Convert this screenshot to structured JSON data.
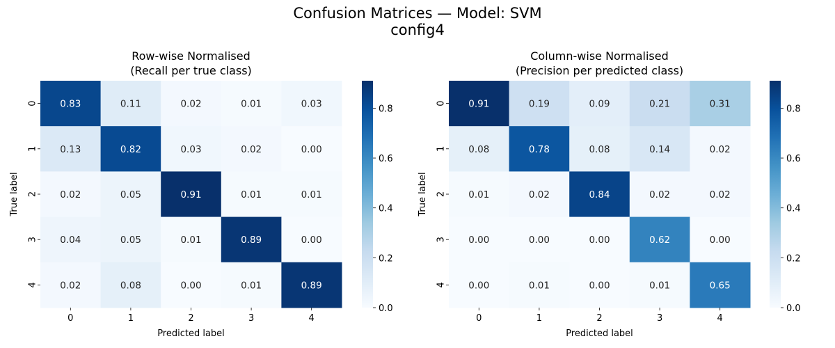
{
  "suptitle_line1": "Confusion Matrices — Model: SVM",
  "suptitle_line2": "config4",
  "chart_data": [
    {
      "type": "heatmap",
      "title_line1": "Row-wise Normalised",
      "title_line2": "(Recall per true class)",
      "xlabel": "Predicted label",
      "ylabel": "True label",
      "x_categories": [
        "0",
        "1",
        "2",
        "3",
        "4"
      ],
      "y_categories": [
        "0",
        "1",
        "2",
        "3",
        "4"
      ],
      "values": [
        [
          0.83,
          0.11,
          0.02,
          0.01,
          0.03
        ],
        [
          0.13,
          0.82,
          0.03,
          0.02,
          0.0
        ],
        [
          0.02,
          0.05,
          0.91,
          0.01,
          0.01
        ],
        [
          0.04,
          0.05,
          0.01,
          0.89,
          0.0
        ],
        [
          0.02,
          0.08,
          0.0,
          0.01,
          0.89
        ]
      ],
      "colormap": "Blues",
      "colorbar": {
        "min": 0.0,
        "max": 0.91,
        "ticks": [
          0.0,
          0.2,
          0.4,
          0.6,
          0.8
        ],
        "tick_labels": [
          "0.0",
          "0.2",
          "0.4",
          "0.6",
          "0.8"
        ]
      }
    },
    {
      "type": "heatmap",
      "title_line1": "Column-wise Normalised",
      "title_line2": "(Precision per predicted class)",
      "xlabel": "Predicted label",
      "ylabel": "True label",
      "x_categories": [
        "0",
        "1",
        "2",
        "3",
        "4"
      ],
      "y_categories": [
        "0",
        "1",
        "2",
        "3",
        "4"
      ],
      "values": [
        [
          0.91,
          0.19,
          0.09,
          0.21,
          0.31
        ],
        [
          0.08,
          0.78,
          0.08,
          0.14,
          0.02
        ],
        [
          0.01,
          0.02,
          0.84,
          0.02,
          0.02
        ],
        [
          0.0,
          0.0,
          0.0,
          0.62,
          0.0
        ],
        [
          0.0,
          0.01,
          0.0,
          0.01,
          0.65
        ]
      ],
      "colormap": "Blues",
      "colorbar": {
        "min": 0.0,
        "max": 0.91,
        "ticks": [
          0.0,
          0.2,
          0.4,
          0.6,
          0.8
        ],
        "tick_labels": [
          "0.0",
          "0.2",
          "0.4",
          "0.6",
          "0.8"
        ]
      }
    }
  ]
}
